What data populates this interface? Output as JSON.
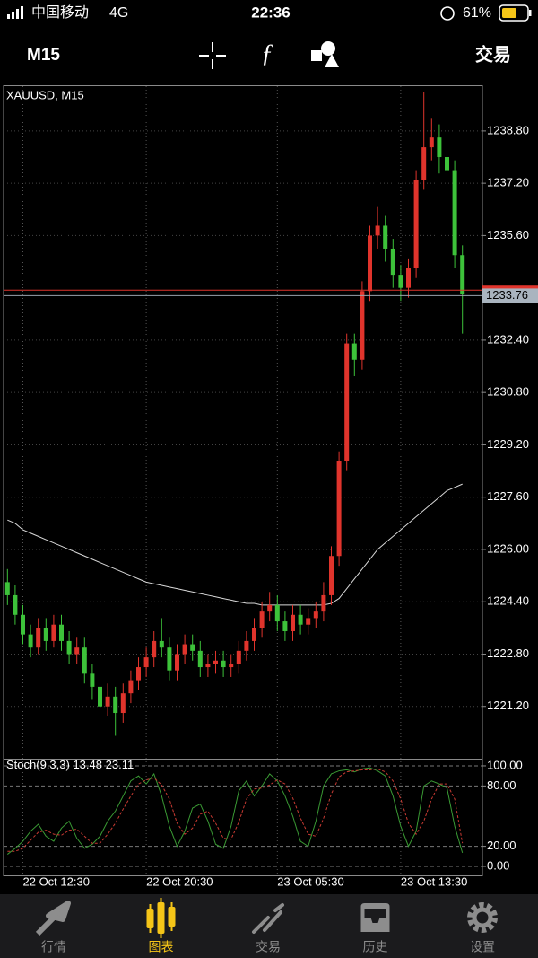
{
  "status_bar": {
    "carrier": "中国移动",
    "network": "4G",
    "time": "22:36",
    "battery": "61%"
  },
  "toolbar": {
    "timeframe": "M15",
    "trade": "交易"
  },
  "chart_data": [
    {
      "type": "candlestick",
      "title": "XAUUSD, M15",
      "categories": [
        null,
        null,
        "22 Oct 12:30",
        null,
        null,
        null,
        null,
        null,
        null,
        null,
        null,
        null,
        null,
        null,
        null,
        null,
        null,
        null,
        "22 Oct 20:30",
        null,
        null,
        null,
        null,
        null,
        null,
        null,
        null,
        null,
        null,
        null,
        null,
        null,
        null,
        null,
        null,
        "23 Oct 05:30",
        null,
        null,
        null,
        null,
        null,
        null,
        null,
        null,
        null,
        null,
        null,
        null,
        null,
        null,
        null,
        "23 Oct 13:30",
        null,
        null,
        null,
        null,
        null,
        null,
        null,
        null
      ],
      "open": [
        1225.0,
        1224.6,
        1224.0,
        1223.4,
        1223.0,
        1223.6,
        1223.2,
        1223.7,
        1223.2,
        1222.8,
        1223.0,
        1222.2,
        1221.8,
        1221.2,
        1221.5,
        1221.0,
        1221.6,
        1222.0,
        1222.4,
        1222.7,
        1223.2,
        1223.0,
        1222.3,
        1222.8,
        1223.1,
        1222.9,
        1222.4,
        1222.5,
        1222.6,
        1222.4,
        1222.5,
        1222.9,
        1223.2,
        1223.6,
        1224.1,
        1224.3,
        1223.8,
        1223.5,
        1224.0,
        1223.7,
        1223.9,
        1224.1,
        1224.6,
        1225.8,
        1228.7,
        1232.3,
        1231.8,
        1233.9,
        1235.6,
        1235.9,
        1235.2,
        1234.4,
        1234.0,
        1234.6,
        1237.3,
        1238.3,
        1238.6,
        1238.0,
        1237.6,
        1235.0
      ],
      "high": [
        1225.4,
        1224.9,
        1224.3,
        1223.7,
        1223.9,
        1223.9,
        1224.0,
        1224.0,
        1223.5,
        1223.3,
        1223.3,
        1222.5,
        1222.1,
        1221.9,
        1221.8,
        1221.9,
        1222.3,
        1222.7,
        1223.0,
        1223.5,
        1223.9,
        1223.3,
        1223.1,
        1223.4,
        1223.4,
        1223.2,
        1222.8,
        1222.9,
        1222.9,
        1222.8,
        1223.2,
        1223.5,
        1223.9,
        1224.4,
        1224.7,
        1224.6,
        1224.1,
        1224.3,
        1224.3,
        1224.2,
        1224.4,
        1225.0,
        1226.1,
        1229.0,
        1232.6,
        1232.6,
        1234.2,
        1235.9,
        1236.5,
        1236.2,
        1235.5,
        1234.7,
        1234.9,
        1237.6,
        1240.0,
        1239.2,
        1239.0,
        1238.8,
        1237.9,
        1235.3
      ],
      "low": [
        1224.3,
        1223.7,
        1223.1,
        1222.7,
        1222.8,
        1222.9,
        1223.0,
        1222.9,
        1222.5,
        1222.5,
        1221.9,
        1221.4,
        1220.7,
        1220.9,
        1220.3,
        1220.7,
        1221.3,
        1221.7,
        1222.1,
        1222.4,
        1222.7,
        1222.0,
        1222.0,
        1222.5,
        1222.6,
        1222.1,
        1222.1,
        1222.2,
        1222.1,
        1222.1,
        1222.2,
        1222.6,
        1222.9,
        1223.3,
        1223.8,
        1223.5,
        1223.2,
        1223.2,
        1223.4,
        1223.4,
        1223.6,
        1223.8,
        1224.3,
        1225.5,
        1228.4,
        1231.3,
        1231.5,
        1233.6,
        1235.2,
        1234.8,
        1234.0,
        1233.6,
        1233.7,
        1234.3,
        1237.0,
        1237.9,
        1237.5,
        1237.2,
        1234.6,
        1232.6
      ],
      "close": [
        1224.6,
        1224.0,
        1223.4,
        1223.0,
        1223.6,
        1223.2,
        1223.7,
        1223.2,
        1222.8,
        1223.0,
        1222.2,
        1221.8,
        1221.2,
        1221.5,
        1221.0,
        1221.6,
        1222.0,
        1222.4,
        1222.7,
        1223.2,
        1223.0,
        1222.3,
        1222.8,
        1223.1,
        1222.9,
        1222.4,
        1222.5,
        1222.6,
        1222.4,
        1222.5,
        1222.9,
        1223.2,
        1223.6,
        1224.1,
        1224.3,
        1223.8,
        1223.5,
        1224.0,
        1223.7,
        1223.9,
        1224.1,
        1224.6,
        1225.8,
        1228.7,
        1232.3,
        1231.8,
        1233.9,
        1235.6,
        1235.9,
        1235.2,
        1234.4,
        1234.0,
        1234.6,
        1237.3,
        1238.3,
        1238.6,
        1238.0,
        1237.6,
        1235.0,
        1233.8
      ],
      "up_color": "#e0342c",
      "down_color": "#3dc23a",
      "overlay": {
        "color": "#d8d8d8",
        "values": [
          1226.9,
          1226.8,
          1226.6,
          1226.5,
          1226.4,
          1226.3,
          1226.2,
          1226.1,
          1226.0,
          1225.9,
          1225.8,
          1225.7,
          1225.6,
          1225.5,
          1225.4,
          1225.3,
          1225.2,
          1225.1,
          1225.0,
          1224.95,
          1224.9,
          1224.85,
          1224.8,
          1224.75,
          1224.7,
          1224.65,
          1224.6,
          1224.55,
          1224.5,
          1224.45,
          1224.4,
          1224.35,
          1224.35,
          1224.3,
          1224.3,
          1224.3,
          1224.3,
          1224.3,
          1224.3,
          1224.3,
          1224.3,
          1224.3,
          1224.35,
          1224.5,
          1224.8,
          1225.1,
          1225.4,
          1225.7,
          1226.0,
          1226.2,
          1226.4,
          1226.6,
          1226.8,
          1227.0,
          1227.2,
          1227.4,
          1227.6,
          1227.8,
          1227.9,
          1228.0
        ]
      },
      "last_price": 1233.76,
      "ask_line": 1233.93,
      "ask_color": "#e0342c",
      "ylim": [
        1219.6,
        1240.17
      ],
      "yticks": [
        {
          "value": 1238.8,
          "label": "1238.80"
        },
        {
          "value": 1237.2,
          "label": "1237.20"
        },
        {
          "value": 1235.6,
          "label": "1235.60"
        },
        {
          "value": 1232.4,
          "label": "1232.40"
        },
        {
          "value": 1230.8,
          "label": "1230.80"
        },
        {
          "value": 1229.2,
          "label": "1229.20"
        },
        {
          "value": 1227.6,
          "label": "1227.60"
        },
        {
          "value": 1226.0,
          "label": "1226.00"
        },
        {
          "value": 1224.4,
          "label": "1224.40"
        },
        {
          "value": 1222.8,
          "label": "1222.80"
        },
        {
          "value": 1221.2,
          "label": "1221.20"
        }
      ],
      "grid": true
    },
    {
      "type": "line",
      "title": "Stoch(9,3,3)",
      "series": [
        {
          "color": "#3a9a34",
          "dashed": false,
          "values": [
            12,
            18,
            25,
            35,
            42,
            30,
            25,
            38,
            45,
            28,
            18,
            22,
            30,
            45,
            55,
            70,
            85,
            90,
            82,
            92,
            70,
            40,
            20,
            35,
            58,
            62,
            45,
            22,
            18,
            40,
            75,
            85,
            70,
            80,
            92,
            85,
            70,
            50,
            25,
            20,
            45,
            80,
            92,
            95,
            96,
            94,
            97,
            98,
            95,
            90,
            70,
            40,
            20,
            35,
            80,
            85,
            82,
            78,
            40,
            13.48
          ]
        },
        {
          "color": "#c83a32",
          "dashed": true,
          "values": [
            15,
            15,
            18,
            26,
            34,
            36,
            32,
            31,
            36,
            37,
            30,
            23,
            23,
            32,
            43,
            57,
            70,
            82,
            86,
            88,
            81,
            67,
            43,
            32,
            38,
            52,
            55,
            43,
            28,
            27,
            44,
            67,
            77,
            78,
            81,
            86,
            82,
            68,
            48,
            32,
            30,
            48,
            72,
            89,
            94,
            95,
            96,
            96,
            97,
            94,
            85,
            67,
            43,
            32,
            45,
            67,
            82,
            82,
            67,
            23.11
          ]
        }
      ],
      "ylim": [
        -8.9,
        107.1
      ],
      "yticks": [
        {
          "value": 100,
          "label": "100.00"
        },
        {
          "value": 80,
          "label": "80.00"
        },
        {
          "value": 20,
          "label": "20.00"
        },
        {
          "value": 0,
          "label": "0.00"
        }
      ]
    }
  ],
  "tab_bar": {
    "active": 1,
    "tabs": [
      "行情",
      "图表",
      "交易",
      "历史",
      "设置"
    ]
  }
}
